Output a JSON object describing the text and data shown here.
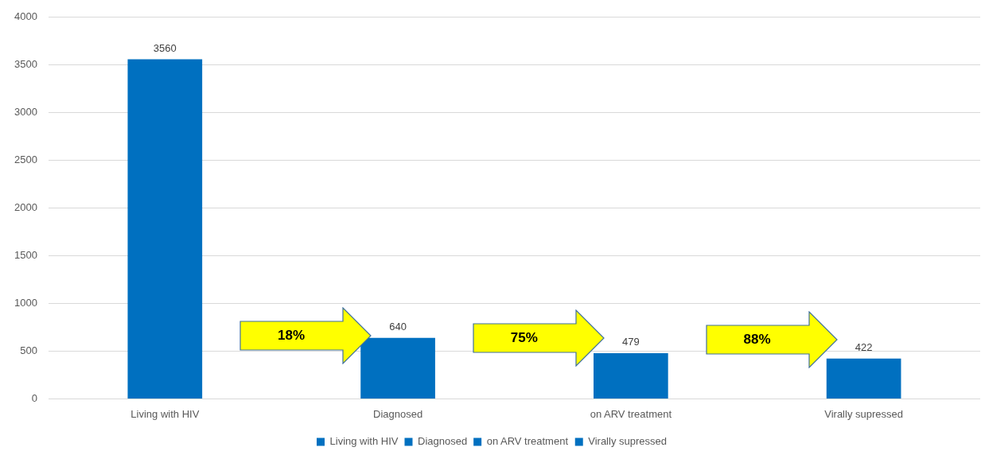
{
  "chart_data": {
    "type": "bar",
    "categories": [
      "Living with HIV",
      "Diagnosed",
      "on ARV treatment",
      "Virally supressed"
    ],
    "series": [
      {
        "name": "Living with HIV",
        "color": "#0070c0",
        "values": [
          3560,
          null,
          null,
          null
        ]
      },
      {
        "name": "Diagnosed",
        "color": "#0070c0",
        "values": [
          null,
          640,
          null,
          null
        ]
      },
      {
        "name": "on ARV treatment",
        "color": "#0070c0",
        "values": [
          null,
          null,
          479,
          null
        ]
      },
      {
        "name": "Virally supressed",
        "color": "#0070c0",
        "values": [
          null,
          null,
          null,
          422
        ]
      }
    ],
    "ylim": [
      0,
      4000
    ],
    "yticks": [
      0,
      500,
      1000,
      1500,
      2000,
      2500,
      3000,
      3500,
      4000
    ],
    "grid": "y",
    "legend": "bottom",
    "data_labels": true,
    "annotations": [
      "18%",
      "75%",
      "88%"
    ]
  }
}
